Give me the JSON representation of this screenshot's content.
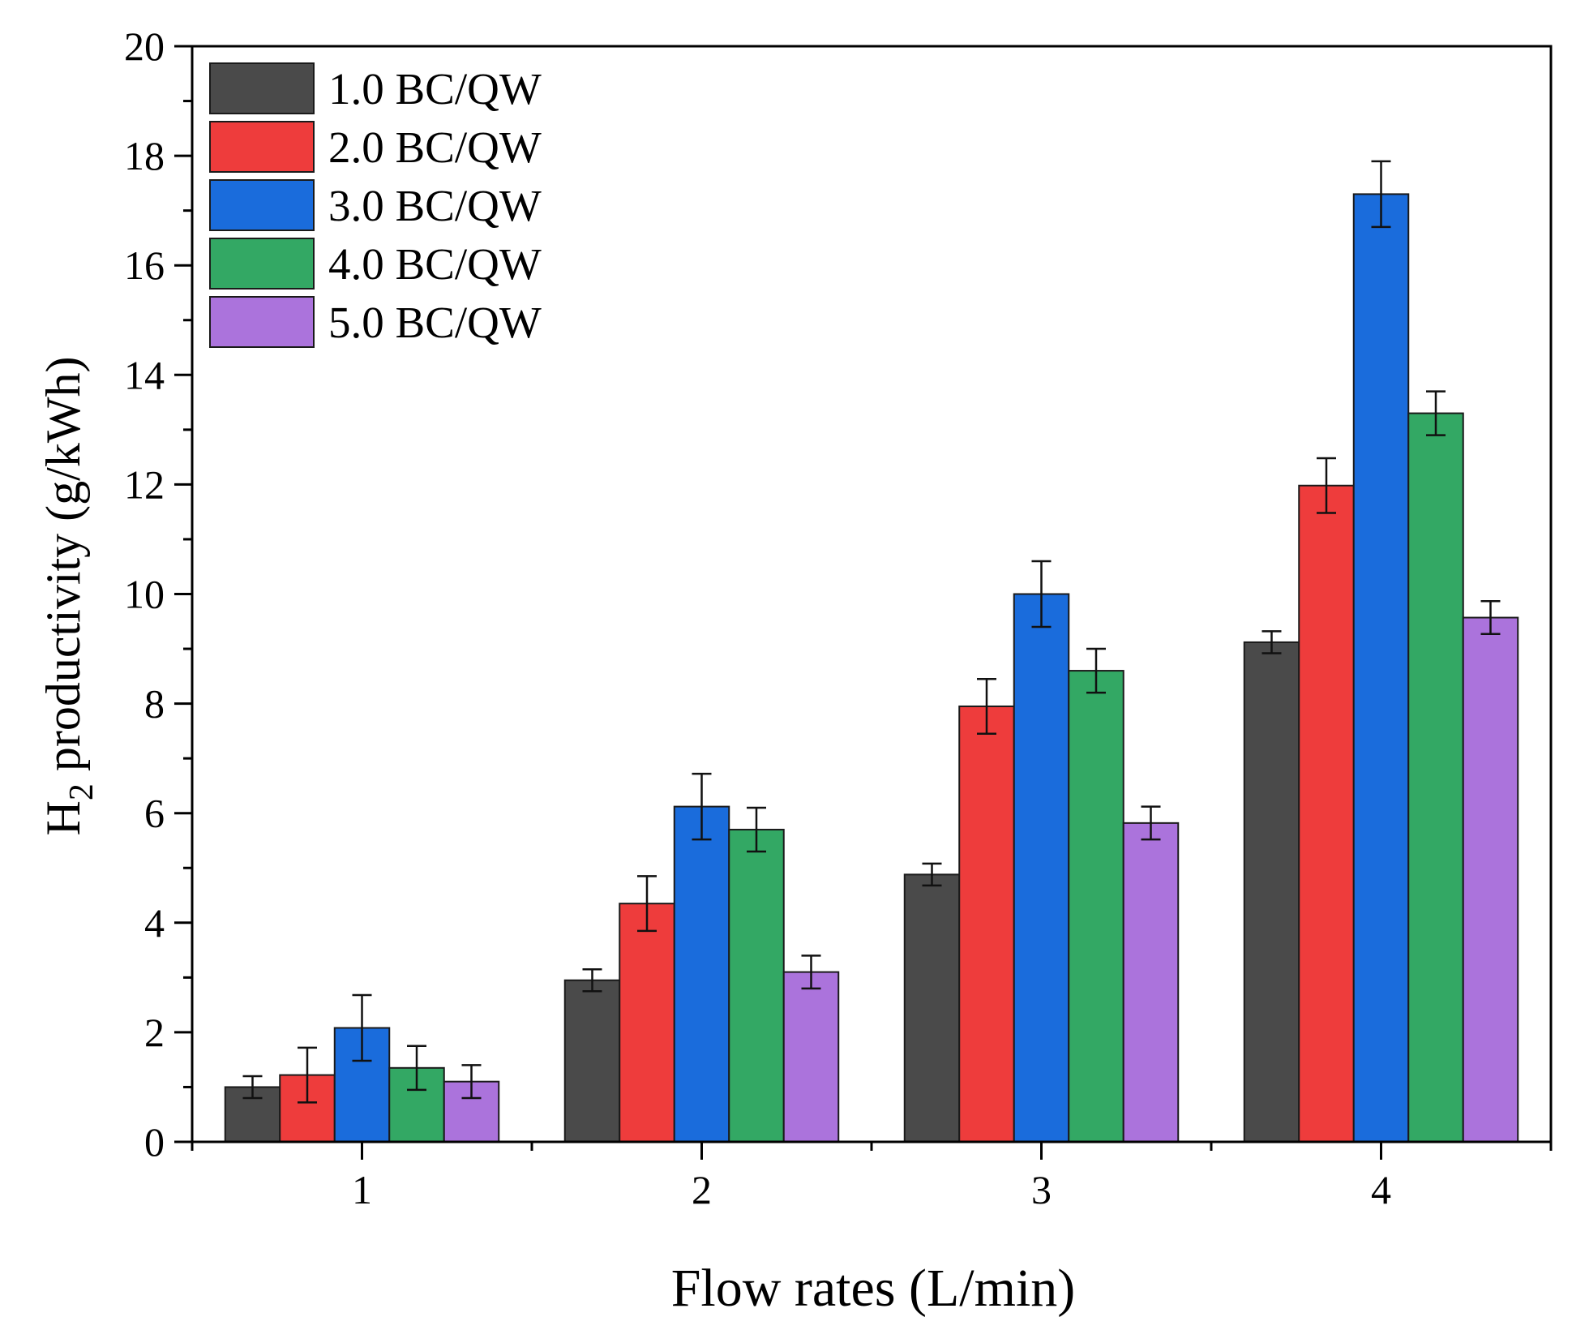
{
  "chart_data": {
    "type": "bar",
    "title": "",
    "xlabel": "Flow rates (L/min)",
    "ylabel_main": "H",
    "ylabel_sub": "2",
    "ylabel_rest": " productivity (g/kWh)",
    "categories": [
      "1",
      "2",
      "3",
      "4"
    ],
    "ylim": [
      0,
      20
    ],
    "yticks": [
      "0",
      "2",
      "4",
      "6",
      "8",
      "10",
      "12",
      "14",
      "16",
      "18",
      "20"
    ],
    "legend_position": "top-left",
    "grid": false,
    "series": [
      {
        "name": "1.0 BC/QW",
        "color": "#4a4a4a",
        "values": [
          1.0,
          2.95,
          4.88,
          9.12
        ],
        "errors": [
          0.2,
          0.2,
          0.2,
          0.2
        ]
      },
      {
        "name": "2.0 BC/QW",
        "color": "#ee3c3c",
        "values": [
          1.22,
          4.35,
          7.95,
          11.98
        ],
        "errors": [
          0.5,
          0.5,
          0.5,
          0.5
        ]
      },
      {
        "name": "3.0 BC/QW",
        "color": "#1a6cdc",
        "values": [
          2.08,
          6.12,
          10.0,
          17.3
        ],
        "errors": [
          0.6,
          0.6,
          0.6,
          0.6
        ]
      },
      {
        "name": "4.0 BC/QW",
        "color": "#33a864",
        "values": [
          1.35,
          5.7,
          8.6,
          13.3
        ],
        "errors": [
          0.4,
          0.4,
          0.4,
          0.4
        ]
      },
      {
        "name": "5.0 BC/QW",
        "color": "#ab73dc",
        "values": [
          1.1,
          3.1,
          5.82,
          9.57
        ],
        "errors": [
          0.3,
          0.3,
          0.3,
          0.3
        ]
      }
    ]
  }
}
